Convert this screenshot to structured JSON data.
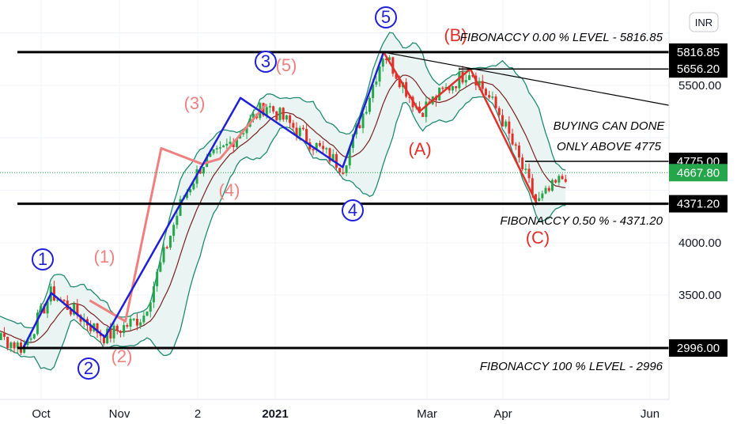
{
  "chart_data": {
    "type": "line",
    "currency": "INR",
    "x_ticks": [
      "Oct",
      "Nov",
      "2",
      "2021",
      "Mar",
      "Apr",
      "Jun"
    ],
    "y_ticks": [
      3500,
      4000,
      5500
    ],
    "y_tick_labels": [
      "3500.00",
      "4000.00",
      "5500.00"
    ],
    "ylim": [
      2550,
      6100
    ],
    "price_levels": [
      {
        "value": 5816.85,
        "label": "5816.85",
        "style": "black"
      },
      {
        "value": 5656.2,
        "label": "5656.20",
        "style": "black"
      },
      {
        "value": 4775.0,
        "label": "4775.00",
        "style": "black"
      },
      {
        "value": 4667.8,
        "label": "4667.80",
        "style": "green"
      },
      {
        "value": 4371.2,
        "label": "4371.20",
        "style": "black"
      },
      {
        "value": 2996.0,
        "label": "2996.00",
        "style": "black"
      }
    ],
    "annotations": [
      "FIBONACCY 0.00 % LEVEL - 5816.85",
      "BUYING CAN DONE",
      "ONLY ABOVE 4775",
      "FIBONACCY 0.50 %  - 4371.20",
      "FIBONACCY 100 % LEVEL - 2996"
    ],
    "impulse_wave_labels": [
      "1",
      "2",
      "3",
      "4",
      "5"
    ],
    "sub_wave_labels": [
      "(1)",
      "(2)",
      "(3)",
      "(4)",
      "(5)"
    ],
    "correction_labels": [
      "(A)",
      "(B)",
      "(C)"
    ],
    "impulse_wave": {
      "x": [
        "2020-09-24",
        "2020-10-05",
        "2020-10-26",
        "2020-12-18",
        "2021-01-27",
        "2021-02-12"
      ],
      "y": [
        2996,
        3520,
        3100,
        5380,
        4720,
        5816
      ]
    },
    "correction_wave": {
      "x": [
        "2021-02-12",
        "2021-02-26",
        "2021-03-18",
        "2021-04-13"
      ],
      "y": [
        5816,
        5250,
        5656,
        4371
      ]
    },
    "sub_wave": {
      "x": [
        "2020-10-20",
        "2020-11-03",
        "2020-11-17",
        "2020-12-03",
        "2020-12-10",
        "2020-12-28"
      ],
      "y": [
        3450,
        3250,
        4900,
        4750,
        4800,
        5320
      ]
    },
    "colors": {
      "impulse": "#1f1fd6",
      "correction": "#e0302a",
      "sub_wave": "#f08080",
      "band": "#1f8a70",
      "band_fill": "#e8f4f2",
      "ma": "#7a1f1f",
      "up_candle": "#26a64a",
      "down_candle": "#e0302a"
    }
  }
}
